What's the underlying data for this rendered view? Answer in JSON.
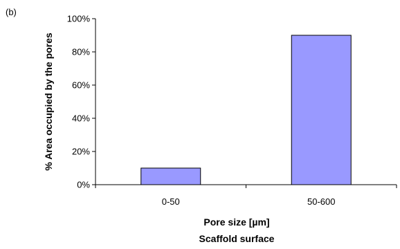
{
  "panel_label": "(b)",
  "chart_data": {
    "type": "bar",
    "categories": [
      "0-50",
      "50-600"
    ],
    "values": [
      10,
      90
    ],
    "ylabel": "% Area occupied by the pores",
    "xlabel": "Pore size [µm]",
    "xlabel_secondary": "Scaffold surface",
    "ylim": [
      0,
      100
    ],
    "yticks": [
      0,
      20,
      40,
      60,
      80,
      100
    ],
    "ytick_labels": [
      "0%",
      "20%",
      "40%",
      "60%",
      "80%",
      "100%"
    ],
    "bar_color": "#9999ff",
    "grid": false,
    "legend": "none"
  }
}
